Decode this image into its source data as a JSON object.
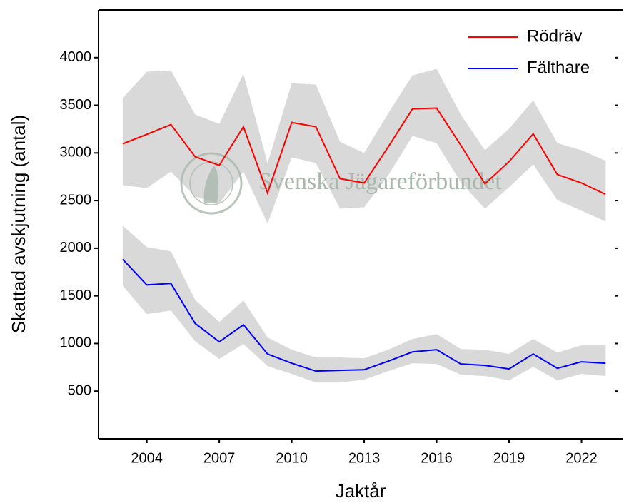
{
  "chart_data": {
    "type": "line",
    "watermark": "Svenska Jägareförbundet",
    "xlabel": "Jaktår",
    "ylabel": "Skattad avskjutning (antal)",
    "x": [
      2003,
      2004,
      2005,
      2006,
      2007,
      2008,
      2009,
      2010,
      2011,
      2012,
      2013,
      2014,
      2015,
      2016,
      2017,
      2018,
      2019,
      2020,
      2021,
      2022,
      2023
    ],
    "series": [
      {
        "name": "Rödräv",
        "color": "#ff0000",
        "values": [
          3096,
          3195,
          3298,
          2960,
          2870,
          3275,
          2580,
          3320,
          3275,
          2730,
          2685,
          3066,
          3462,
          3470,
          3081,
          2677,
          2909,
          3200,
          2774,
          2685,
          2565
        ],
        "ci_upper": [
          3575,
          3851,
          3866,
          3403,
          3305,
          3829,
          2894,
          3731,
          3717,
          3118,
          2999,
          3418,
          3814,
          3881,
          3403,
          3029,
          3253,
          3552,
          3103,
          3029,
          2917
        ],
        "ci_lower": [
          2662,
          2632,
          2804,
          2543,
          2468,
          2804,
          2258,
          2954,
          2894,
          2415,
          2430,
          2767,
          3178,
          3103,
          2692,
          2415,
          2640,
          2879,
          2505,
          2393,
          2281
        ]
      },
      {
        "name": "Fälthare",
        "color": "#0000ff",
        "values": [
          1884,
          1615,
          1630,
          1211,
          1017,
          1196,
          890,
          793,
          710,
          718,
          725,
          815,
          912,
          935,
          785,
          770,
          733,
          890,
          740,
          808,
          793
        ],
        "ci_upper": [
          2236,
          2012,
          1967,
          1458,
          1226,
          1451,
          1062,
          935,
          853,
          853,
          845,
          935,
          1047,
          1099,
          942,
          935,
          890,
          1047,
          905,
          980,
          980
        ],
        "ci_lower": [
          1608,
          1308,
          1346,
          1024,
          838,
          995,
          763,
          680,
          591,
          591,
          621,
          710,
          793,
          785,
          673,
          658,
          613,
          755,
          613,
          680,
          658
        ]
      }
    ],
    "band_color": "#d9d9d9",
    "xlim": [
      2002,
      2023.7
    ],
    "xticks": [
      2004,
      2007,
      2010,
      2013,
      2016,
      2019,
      2022
    ],
    "ylim": [
      0,
      4500
    ],
    "yticks": [
      500,
      1000,
      1500,
      2000,
      2500,
      3000,
      3500,
      4000
    ],
    "legend": "upper right"
  }
}
